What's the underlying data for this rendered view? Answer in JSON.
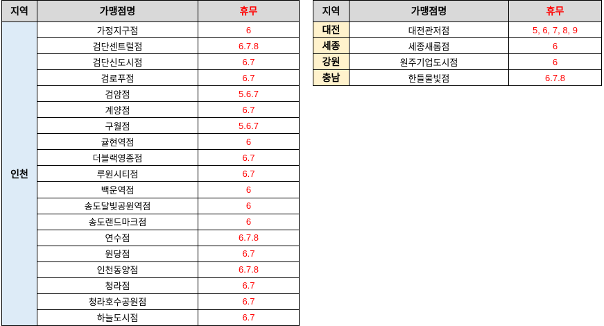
{
  "colors": {
    "header_bg": "#d9d9d9",
    "incheon_region_bg": "#ddebf7",
    "right_region_bg": "#fff2cc",
    "closed_text": "#ff0000",
    "border": "#000000"
  },
  "headers": {
    "region": "지역",
    "store": "가맹점명",
    "closed": "휴무"
  },
  "left_table": {
    "region": "인천",
    "rows": [
      {
        "store": "가정지구점",
        "closed": "6"
      },
      {
        "store": "검단센트럴점",
        "closed": "6.7.8"
      },
      {
        "store": "검단신도시점",
        "closed": "6.7"
      },
      {
        "store": "검로푸점",
        "closed": "6.7"
      },
      {
        "store": "검암점",
        "closed": "5.6.7"
      },
      {
        "store": "계양점",
        "closed": "6.7"
      },
      {
        "store": "구월점",
        "closed": "5.6.7"
      },
      {
        "store": "귤현역점",
        "closed": "6"
      },
      {
        "store": "더블랙영종점",
        "closed": "6.7"
      },
      {
        "store": "루원시티점",
        "closed": "6.7"
      },
      {
        "store": "백운역점",
        "closed": "6"
      },
      {
        "store": "송도달빛공원역점",
        "closed": "6"
      },
      {
        "store": "송도랜드마크점",
        "closed": "6"
      },
      {
        "store": "연수점",
        "closed": "6.7.8"
      },
      {
        "store": "원당점",
        "closed": "6.7"
      },
      {
        "store": "인천동양점",
        "closed": "6.7.8"
      },
      {
        "store": "청라점",
        "closed": "6.7"
      },
      {
        "store": "청라호수공원점",
        "closed": "6.7"
      },
      {
        "store": "하늘도시점",
        "closed": "6.7"
      }
    ]
  },
  "right_table": {
    "rows": [
      {
        "region": "대전",
        "store": "대전관저점",
        "closed": "5, 6, 7, 8, 9"
      },
      {
        "region": "세종",
        "store": "세종새롬점",
        "closed": "6"
      },
      {
        "region": "강원",
        "store": "원주기업도시점",
        "closed": "6"
      },
      {
        "region": "충남",
        "store": "한들물빛점",
        "closed": "6.7.8"
      }
    ]
  }
}
